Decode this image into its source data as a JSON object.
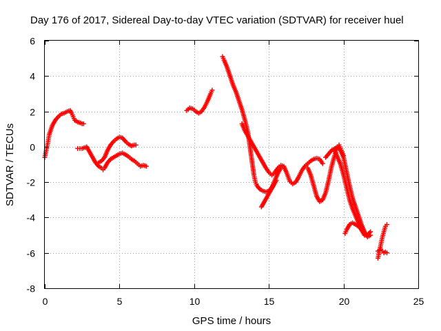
{
  "chart_data": {
    "type": "scatter",
    "title": "Day 176 of 2017, Sidereal Day-to-day VTEC variation (SDTVAR) for receiver huel",
    "xlabel": "GPS time / hours",
    "ylabel": "SDTVAR / TECUs",
    "xlim": [
      0,
      25
    ],
    "ylim": [
      -8,
      6
    ],
    "xticks": [
      0,
      5,
      10,
      15,
      20,
      25
    ],
    "yticks": [
      -8,
      -6,
      -4,
      -2,
      0,
      2,
      4,
      6
    ],
    "xtick_labels": [
      "0",
      "5",
      "10",
      "15",
      "20",
      "25"
    ],
    "ytick_labels": [
      "-8",
      "-6",
      "-4",
      "-2",
      "0",
      "2",
      "4",
      "6"
    ],
    "grid": true,
    "legend": "none",
    "marker": "plus",
    "color": "#ff0000",
    "series": [
      {
        "x": [
          0.0,
          0.1,
          0.2,
          0.3,
          0.5,
          0.7,
          0.9,
          1.1,
          1.3,
          1.5,
          1.7,
          1.8,
          1.9,
          2.0,
          2.2,
          2.4,
          2.5,
          2.6
        ],
        "y": [
          -0.6,
          -0.2,
          0.2,
          0.7,
          1.2,
          1.5,
          1.7,
          1.85,
          1.9,
          2.0,
          2.05,
          1.9,
          1.7,
          1.5,
          1.4,
          1.35,
          1.3,
          1.3
        ]
      },
      {
        "x": [
          2.2,
          2.5,
          2.8,
          3.0,
          3.2,
          3.4,
          3.6,
          3.8,
          3.9,
          4.0,
          4.2,
          4.4,
          4.6,
          4.8,
          5.0,
          5.2,
          5.4,
          5.6,
          5.8,
          6.0,
          6.2,
          6.4,
          6.6,
          6.8
        ],
        "y": [
          -0.1,
          -0.1,
          0.0,
          -0.3,
          -0.6,
          -0.9,
          -1.1,
          -1.2,
          -1.3,
          -1.2,
          -0.9,
          -0.7,
          -0.6,
          -0.5,
          -0.4,
          -0.35,
          -0.45,
          -0.55,
          -0.7,
          -0.8,
          -0.95,
          -1.1,
          -1.05,
          -1.1
        ]
      },
      {
        "x": [
          3.6,
          3.8,
          4.0,
          4.2,
          4.4,
          4.6,
          4.8,
          5.0,
          5.2,
          5.4,
          5.6,
          5.8,
          6.0,
          6.1
        ],
        "y": [
          -0.9,
          -0.8,
          -0.6,
          -0.2,
          0.1,
          0.3,
          0.45,
          0.55,
          0.5,
          0.3,
          0.15,
          0.05,
          0.1,
          0.1
        ]
      },
      {
        "x": [
          9.5,
          9.7,
          9.9,
          10.1,
          10.3,
          10.5,
          10.7,
          10.9,
          11.1,
          11.2
        ],
        "y": [
          2.05,
          2.2,
          2.15,
          2.0,
          1.9,
          2.0,
          2.25,
          2.6,
          3.0,
          3.2
        ]
      },
      {
        "x": [
          11.9,
          12.0,
          12.2,
          12.4,
          12.6,
          12.8,
          13.0,
          13.2,
          13.4,
          13.6,
          13.7,
          13.8,
          13.9,
          14.0,
          14.1,
          14.2,
          14.4,
          14.6,
          14.8,
          15.0,
          15.2,
          15.4,
          15.6,
          15.8
        ],
        "y": [
          5.1,
          4.9,
          4.5,
          4.0,
          3.5,
          3.1,
          2.6,
          2.1,
          1.5,
          0.8,
          0.2,
          -0.4,
          -1.0,
          -1.6,
          -2.0,
          -2.2,
          -2.4,
          -2.5,
          -2.55,
          -2.5,
          -2.3,
          -1.9,
          -1.5,
          -1.2
        ]
      },
      {
        "x": [
          13.2,
          13.4,
          13.6,
          13.8,
          14.0,
          14.2,
          14.4,
          14.6,
          14.8,
          15.0,
          15.2,
          15.4,
          15.6,
          15.8,
          16.0,
          16.2,
          16.4,
          16.6,
          16.8,
          17.0,
          17.2,
          17.4,
          17.6,
          17.8,
          18.0,
          18.2,
          18.4,
          18.6
        ],
        "y": [
          1.3,
          0.9,
          0.6,
          0.3,
          0.0,
          -0.3,
          -0.6,
          -0.9,
          -1.2,
          -1.45,
          -1.6,
          -1.45,
          -1.2,
          -1.05,
          -1.1,
          -1.5,
          -1.95,
          -2.1,
          -2.0,
          -1.7,
          -1.35,
          -1.1,
          -0.95,
          -0.8,
          -0.7,
          -0.65,
          -0.7,
          -0.95
        ]
      },
      {
        "x": [
          14.5,
          14.7,
          14.9,
          15.1,
          15.3,
          15.5
        ],
        "y": [
          -3.4,
          -3.1,
          -2.8,
          -2.5,
          -2.2,
          -1.9
        ]
      },
      {
        "x": [
          17.6,
          17.8,
          18.0,
          18.2,
          18.4,
          18.6,
          18.8,
          19.0,
          19.2,
          19.4,
          19.5,
          19.6,
          19.7,
          19.8,
          19.9,
          20.0
        ],
        "y": [
          -1.2,
          -1.6,
          -2.2,
          -2.8,
          -3.1,
          -3.0,
          -2.6,
          -1.9,
          -1.1,
          -0.5,
          -0.2,
          0.0,
          0.1,
          -0.1,
          -0.3,
          -0.5
        ]
      },
      {
        "x": [
          18.8,
          19.0,
          19.2,
          19.4,
          19.6,
          19.8,
          20.0,
          20.2,
          20.4,
          20.6,
          20.8,
          21.0,
          21.2,
          21.4,
          21.6,
          21.8
        ],
        "y": [
          -0.6,
          -0.4,
          -0.2,
          -0.1,
          0.0,
          -0.2,
          -0.6,
          -1.4,
          -2.2,
          -2.9,
          -3.4,
          -3.9,
          -4.4,
          -4.8,
          -5.1,
          -5.0
        ]
      },
      {
        "x": [
          19.4,
          19.6,
          19.8,
          20.0,
          20.2,
          20.4,
          20.6,
          20.8,
          21.0,
          21.2,
          21.4,
          21.6,
          21.8
        ],
        "y": [
          -0.2,
          -0.6,
          -1.0,
          -1.6,
          -2.3,
          -3.0,
          -3.5,
          -3.9,
          -4.3,
          -4.7,
          -5.0,
          -5.0,
          -4.8
        ]
      },
      {
        "x": [
          20.1,
          20.2,
          20.4,
          20.6,
          20.8,
          21.0,
          21.2,
          21.4
        ],
        "y": [
          -4.9,
          -4.7,
          -4.4,
          -4.3,
          -4.4,
          -4.5,
          -4.7,
          -4.9
        ]
      },
      {
        "x": [
          22.3,
          22.4,
          22.5,
          22.6,
          22.7,
          22.8,
          22.9
        ],
        "y": [
          -6.3,
          -5.9,
          -5.5,
          -5.1,
          -4.8,
          -4.5,
          -4.4
        ]
      },
      {
        "x": [
          22.3,
          22.4,
          22.5,
          22.6,
          22.7,
          22.8,
          22.9
        ],
        "y": [
          -5.9,
          -5.85,
          -5.8,
          -5.9,
          -6.0,
          -5.95,
          -6.0
        ]
      }
    ]
  }
}
